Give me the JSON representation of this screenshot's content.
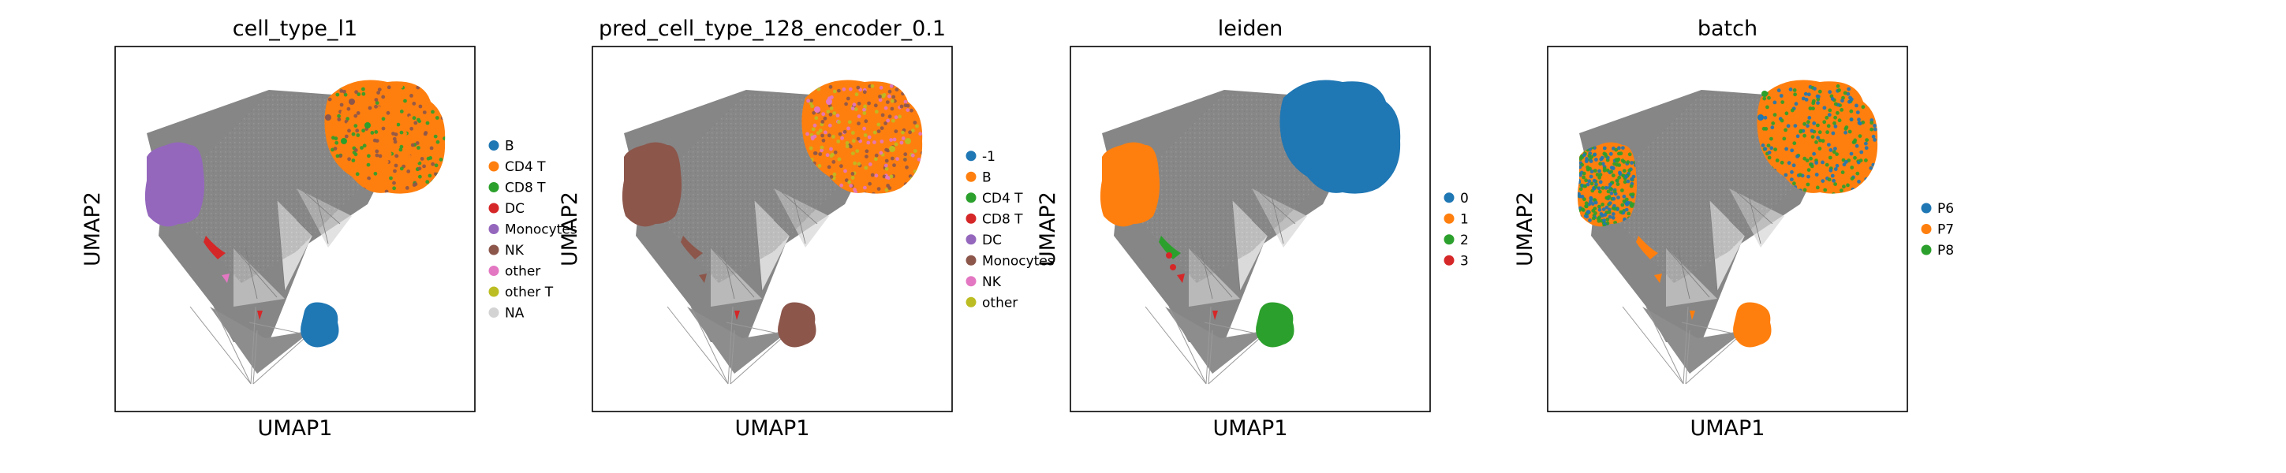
{
  "chart_data": [
    {
      "type": "scatter",
      "title": "cell_type_l1",
      "xlabel": "UMAP1",
      "ylabel": "UMAP2",
      "legend_position": "right",
      "categories": [
        "B",
        "CD4 T",
        "CD8 T",
        "DC",
        "Monocytes",
        "NK",
        "other",
        "other T",
        "NA"
      ],
      "colors": [
        "#1f77b4",
        "#ff7f0e",
        "#2ca02c",
        "#d62728",
        "#9467bd",
        "#8c564b",
        "#e377c2",
        "#bcbd22",
        "#d3d3d3"
      ]
    },
    {
      "type": "scatter",
      "title": "pred_cell_type_128_encoder_0.1",
      "xlabel": "UMAP1",
      "ylabel": "UMAP2",
      "legend_position": "right",
      "categories": [
        "-1",
        "B",
        "CD4 T",
        "CD8 T",
        "DC",
        "Monocytes",
        "NK",
        "other"
      ],
      "colors": [
        "#1f77b4",
        "#ff7f0e",
        "#2ca02c",
        "#d62728",
        "#9467bd",
        "#8c564b",
        "#e377c2",
        "#bcbd22"
      ]
    },
    {
      "type": "scatter",
      "title": "leiden",
      "xlabel": "UMAP1",
      "ylabel": "UMAP2",
      "legend_position": "right",
      "categories": [
        "0",
        "1",
        "2",
        "3"
      ],
      "colors": [
        "#1f77b4",
        "#ff7f0e",
        "#2ca02c",
        "#d62728"
      ]
    },
    {
      "type": "scatter",
      "title": "batch",
      "xlabel": "UMAP1",
      "ylabel": "UMAP2",
      "legend_position": "right",
      "categories": [
        "P6",
        "P7",
        "P8"
      ],
      "colors": [
        "#1f77b4",
        "#ff7f0e",
        "#2ca02c"
      ]
    }
  ]
}
